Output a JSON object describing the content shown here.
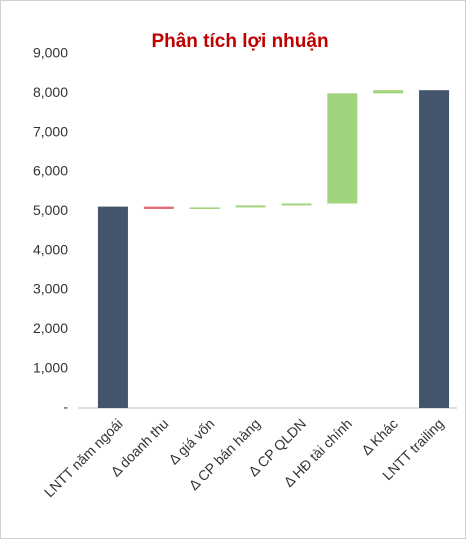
{
  "chart_data": {
    "type": "waterfall",
    "title": "Phân tích lợi nhuận",
    "categories": [
      "LNTT năm ngoái",
      "Δ doanh thu",
      "Δ giá vốn",
      "Δ CP bán hàng",
      "Δ CP QLDN",
      "Δ HĐ tài chính",
      "Δ Khác",
      "LNTT trailing"
    ],
    "values": [
      5120,
      -60,
      40,
      50,
      50,
      2800,
      80,
      8080
    ],
    "is_total": [
      true,
      false,
      false,
      false,
      false,
      false,
      false,
      true
    ],
    "colors": {
      "total": "#44546a",
      "increase": "#a0d47c",
      "decrease": "#e06c75"
    },
    "ylim": [
      0,
      9000
    ],
    "yticks": [
      {
        "value": 0,
        "label": "-"
      },
      {
        "value": 1000,
        "label": "1,000"
      },
      {
        "value": 2000,
        "label": "2,000"
      },
      {
        "value": 3000,
        "label": "3,000"
      },
      {
        "value": 4000,
        "label": "4,000"
      },
      {
        "value": 5000,
        "label": "5,000"
      },
      {
        "value": 6000,
        "label": "6,000"
      },
      {
        "value": 7000,
        "label": "7,000"
      },
      {
        "value": 8000,
        "label": "8,000"
      },
      {
        "value": 9000,
        "label": "9,000"
      }
    ],
    "grid": false
  }
}
